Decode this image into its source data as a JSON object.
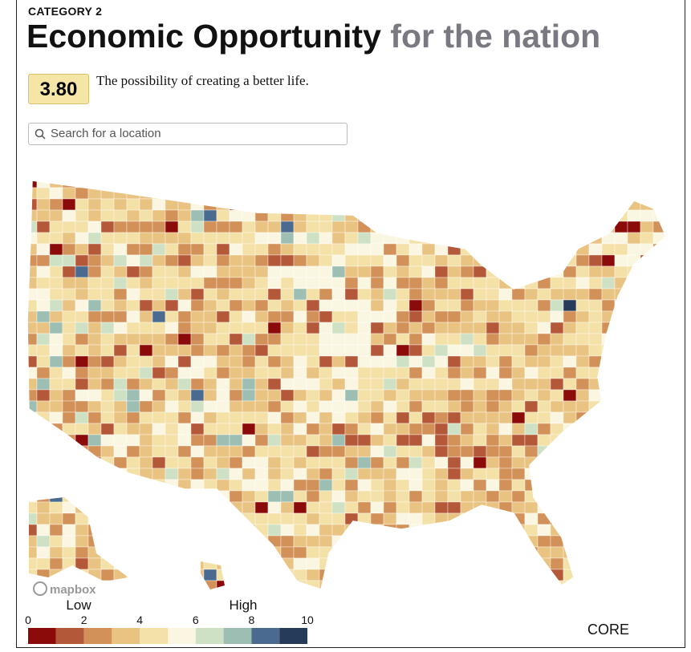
{
  "header": {
    "category": "CATEGORY 2",
    "title": "Economic Opportunity",
    "title_suffix": "for the nation"
  },
  "score": {
    "value": "3.80",
    "description": "The possibility of creating a better life."
  },
  "search": {
    "placeholder": "Search for a location"
  },
  "map": {
    "attribution": "mapbox"
  },
  "legend": {
    "low": "Low",
    "high": "High",
    "ticks": [
      0,
      2,
      4,
      6,
      8,
      10
    ],
    "range": [
      0,
      10
    ],
    "colors": [
      "#8b0b0b",
      "#b35838",
      "#d29158",
      "#e9c382",
      "#f3e1a7",
      "#fbf6e2",
      "#cfe1c5",
      "#9dbfb3",
      "#4b6a8f",
      "#263a5a"
    ]
  },
  "footer": {
    "brand": "CORE"
  }
}
